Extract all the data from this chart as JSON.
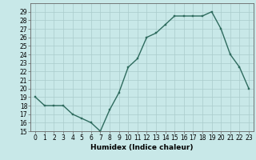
{
  "x": [
    0,
    1,
    2,
    3,
    4,
    5,
    6,
    7,
    8,
    9,
    10,
    11,
    12,
    13,
    14,
    15,
    16,
    17,
    18,
    19,
    20,
    21,
    22,
    23
  ],
  "y": [
    19,
    18,
    18,
    18,
    17,
    16.5,
    16,
    15,
    17.5,
    19.5,
    22.5,
    23.5,
    26,
    26.5,
    27.5,
    28.5,
    28.5,
    28.5,
    28.5,
    29,
    27,
    24,
    22.5,
    20
  ],
  "line_color": "#2e6b5e",
  "marker_color": "#2e6b5e",
  "bg_color": "#c8e8e8",
  "grid_color": "#aacccc",
  "xlabel": "Humidex (Indice chaleur)",
  "ylim": [
    15,
    30
  ],
  "xlim_min": -0.5,
  "xlim_max": 23.5,
  "yticks": [
    15,
    16,
    17,
    18,
    19,
    20,
    21,
    22,
    23,
    24,
    25,
    26,
    27,
    28,
    29
  ],
  "xticks": [
    0,
    1,
    2,
    3,
    4,
    5,
    6,
    7,
    8,
    9,
    10,
    11,
    12,
    13,
    14,
    15,
    16,
    17,
    18,
    19,
    20,
    21,
    22,
    23
  ],
  "xtick_labels": [
    "0",
    "1",
    "2",
    "3",
    "4",
    "5",
    "6",
    "7",
    "8",
    "9",
    "10",
    "11",
    "12",
    "13",
    "14",
    "15",
    "16",
    "17",
    "18",
    "19",
    "20",
    "21",
    "22",
    "23"
  ],
  "xlabel_fontsize": 6.5,
  "tick_fontsize": 5.5,
  "linewidth": 1.0,
  "markersize": 2.0
}
